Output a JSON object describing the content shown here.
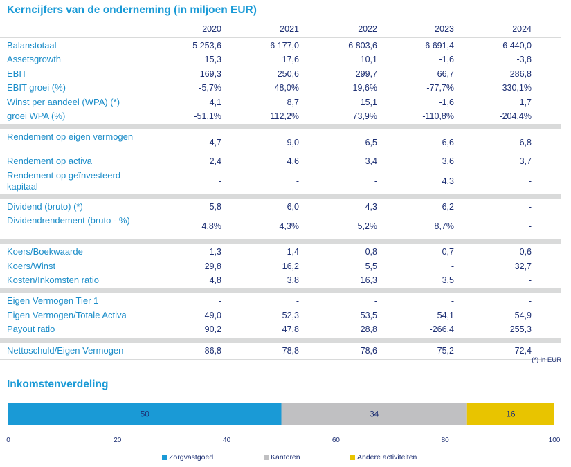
{
  "title": "Kerncijfers van de onderneming (in miljoen EUR)",
  "years": [
    "2020",
    "2021",
    "2022",
    "2023",
    "2024"
  ],
  "groups": [
    [
      {
        "label": "Balanstotaal",
        "values": [
          "5 253,6",
          "6 177,0",
          "6 803,6",
          "6 691,4",
          "6 440,0"
        ]
      },
      {
        "label": "Assetsgrowth",
        "values": [
          "15,3",
          "17,6",
          "10,1",
          "-1,6",
          "-3,8"
        ]
      },
      {
        "label": "EBIT",
        "values": [
          "169,3",
          "250,6",
          "299,7",
          "66,7",
          "286,8"
        ]
      },
      {
        "label": "EBIT groei (%)",
        "values": [
          "-5,7%",
          "48,0%",
          "19,6%",
          "-77,7%",
          "330,1%"
        ]
      },
      {
        "label": "Winst per aandeel (WPA) (*)",
        "values": [
          "4,1",
          "8,7",
          "15,1",
          "-1,6",
          "1,7"
        ]
      },
      {
        "label": "groei WPA (%)",
        "values": [
          "-51,1%",
          "112,2%",
          "73,9%",
          "-110,8%",
          "-204,4%"
        ]
      }
    ],
    [
      {
        "label": "Rendement op eigen vermogen",
        "values": [
          "4,7",
          "9,0",
          "6,5",
          "6,6",
          "6,8"
        ]
      },
      {
        "label": "Rendement op activa",
        "values": [
          "2,4",
          "4,6",
          "3,4",
          "3,6",
          "3,7"
        ]
      },
      {
        "label": "Rendement op geïnvesteerd kapitaal",
        "values": [
          "-",
          "-",
          "-",
          "4,3",
          "-"
        ]
      }
    ],
    [
      {
        "label": "Dividend (bruto) (*)",
        "values": [
          "5,8",
          "6,0",
          "4,3",
          "6,2",
          "-"
        ]
      },
      {
        "label": "Dividendrendement (bruto - %)",
        "values": [
          "4,8%",
          "4,3%",
          "5,2%",
          "8,7%",
          "-"
        ]
      }
    ],
    [
      {
        "label": "Koers/Boekwaarde",
        "values": [
          "1,3",
          "1,4",
          "0,8",
          "0,7",
          "0,6"
        ]
      },
      {
        "label": "Koers/Winst",
        "values": [
          "29,8",
          "16,2",
          "5,5",
          "-",
          "32,7"
        ]
      },
      {
        "label": "Kosten/Inkomsten ratio",
        "values": [
          "4,8",
          "3,8",
          "16,3",
          "3,5",
          "-"
        ]
      }
    ],
    [
      {
        "label": "Eigen Vermogen Tier 1",
        "values": [
          "-",
          "-",
          "-",
          "-",
          "-"
        ]
      },
      {
        "label": "Eigen Vermogen/Totale Activa",
        "values": [
          "49,0",
          "52,3",
          "53,5",
          "54,1",
          "54,9"
        ]
      },
      {
        "label": "Payout ratio",
        "values": [
          "90,2",
          "47,8",
          "28,8",
          "-266,4",
          "255,3"
        ]
      }
    ],
    [
      {
        "label": "Nettoschuld/Eigen Vermogen",
        "values": [
          "86,8",
          "78,8",
          "78,6",
          "75,2",
          "72,4"
        ]
      }
    ]
  ],
  "footnote": "(*) in EUR",
  "income_title": "Inkomstenverdeling",
  "chart_data": {
    "type": "bar",
    "orientation": "horizontal-stacked",
    "title": "Inkomstenverdeling",
    "series": [
      {
        "name": "Zorgvastgoed",
        "values": [
          50
        ],
        "color": "#1a9ad6"
      },
      {
        "name": "Kantoren",
        "values": [
          34
        ],
        "color": "#c0c0c2"
      },
      {
        "name": "Andere activiteiten",
        "values": [
          16
        ],
        "color": "#e8c400"
      }
    ],
    "xlim": [
      0,
      100
    ],
    "xticks": [
      "0",
      "20",
      "40",
      "60",
      "80",
      "100"
    ],
    "legend_position": "bottom",
    "grid": false
  }
}
